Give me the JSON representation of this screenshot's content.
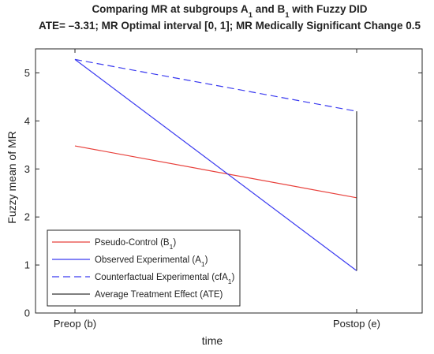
{
  "chart_data": {
    "type": "line",
    "title": {
      "line1": {
        "pre": "Comparing MR at subgroups A",
        "sub1": "1",
        "mid": " and B",
        "sub2": "1",
        "post": " with Fuzzy DID"
      },
      "line2": "ATE= –3.31; MR Optimal interval [0, 1]; MR Medically Significant Change 0.5"
    },
    "xlabel": "time",
    "ylabel": "Fuzzy mean of MR",
    "categories": [
      "Preop (b)",
      "Postop (e)"
    ],
    "ylim": [
      0,
      5.5
    ],
    "yticks": [
      0,
      1,
      2,
      3,
      4,
      5
    ],
    "grid": false,
    "legend_position": "bottom-left",
    "series": [
      {
        "key": "pseudo_control",
        "name": "Pseudo-Control (B1)",
        "label_parts": {
          "pre": "Pseudo-Control (B",
          "sub": "1",
          "post": ")"
        },
        "values": [
          3.48,
          2.4
        ],
        "color": "#e8413c",
        "style": "solid"
      },
      {
        "key": "observed_experimental",
        "name": "Observed Experimental (A1)",
        "label_parts": {
          "pre": "Observed Experimental (A",
          "sub": "1",
          "post": ")"
        },
        "values": [
          5.28,
          0.88
        ],
        "color": "#3a3af0",
        "style": "solid"
      },
      {
        "key": "counterfactual_experimental",
        "name": "Counterfactual Experimental (cfA1)",
        "label_parts": {
          "pre": "Counterfactual Experimental (cfA",
          "sub": "1",
          "post": ")"
        },
        "values": [
          5.28,
          4.2
        ],
        "color": "#3a3af0",
        "style": "dashed"
      }
    ],
    "ate": {
      "name": "Average Treatment Effect (ATE)",
      "label_parts": {
        "pre": "Average Treatment Effect (ATE)",
        "sub": "",
        "post": ""
      },
      "x": "Postop (e)",
      "y_from": 4.2,
      "y_to": 0.88,
      "color": "#333333"
    }
  }
}
